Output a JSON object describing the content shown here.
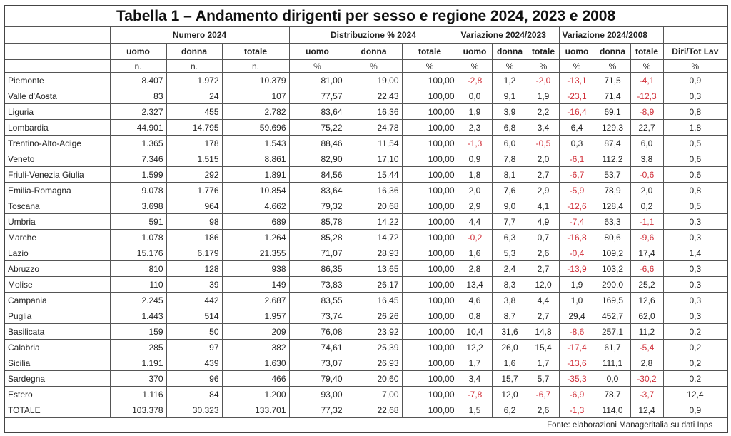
{
  "title": "Tabella 1 – Andamento dirigenti per sesso e regione 2024, 2023 e 2008",
  "groups": [
    "Numero 2024",
    "Distribuzione % 2024",
    "Variazione 2024/2023",
    "Variazione 2024/2008"
  ],
  "columns": [
    "uomo",
    "donna",
    "totale",
    "uomo",
    "donna",
    "totale",
    "uomo",
    "donna",
    "totale",
    "uomo",
    "donna",
    "totale",
    "Diri/Tot Lav"
  ],
  "units": [
    "n.",
    "n.",
    "n.",
    "%",
    "%",
    "%",
    "%",
    "%",
    "%",
    "%",
    "%",
    "%",
    "%"
  ],
  "negative_color": "#d0303a",
  "rows": [
    [
      "Piemonte",
      "8.407",
      "1.972",
      "10.379",
      "81,00",
      "19,00",
      "100,00",
      "-2,8",
      "1,2",
      "-2,0",
      "-13,1",
      "71,5",
      "-4,1",
      "0,9"
    ],
    [
      "Valle d'Aosta",
      "83",
      "24",
      "107",
      "77,57",
      "22,43",
      "100,00",
      "0,0",
      "9,1",
      "1,9",
      "-23,1",
      "71,4",
      "-12,3",
      "0,3"
    ],
    [
      "Liguria",
      "2.327",
      "455",
      "2.782",
      "83,64",
      "16,36",
      "100,00",
      "1,9",
      "3,9",
      "2,2",
      "-16,4",
      "69,1",
      "-8,9",
      "0,8"
    ],
    [
      "Lombardia",
      "44.901",
      "14.795",
      "59.696",
      "75,22",
      "24,78",
      "100,00",
      "2,3",
      "6,8",
      "3,4",
      "6,4",
      "129,3",
      "22,7",
      "1,8"
    ],
    [
      "Trentino-Alto-Adige",
      "1.365",
      "178",
      "1.543",
      "88,46",
      "11,54",
      "100,00",
      "-1,3",
      "6,0",
      "-0,5",
      "0,3",
      "87,4",
      "6,0",
      "0,5"
    ],
    [
      "Veneto",
      "7.346",
      "1.515",
      "8.861",
      "82,90",
      "17,10",
      "100,00",
      "0,9",
      "7,8",
      "2,0",
      "-6,1",
      "112,2",
      "3,8",
      "0,6"
    ],
    [
      "Friuli-Venezia Giulia",
      "1.599",
      "292",
      "1.891",
      "84,56",
      "15,44",
      "100,00",
      "1,8",
      "8,1",
      "2,7",
      "-6,7",
      "53,7",
      "-0,6",
      "0,6"
    ],
    [
      "Emilia-Romagna",
      "9.078",
      "1.776",
      "10.854",
      "83,64",
      "16,36",
      "100,00",
      "2,0",
      "7,6",
      "2,9",
      "-5,9",
      "78,9",
      "2,0",
      "0,8"
    ],
    [
      "Toscana",
      "3.698",
      "964",
      "4.662",
      "79,32",
      "20,68",
      "100,00",
      "2,9",
      "9,0",
      "4,1",
      "-12,6",
      "128,4",
      "0,2",
      "0,5"
    ],
    [
      "Umbria",
      "591",
      "98",
      "689",
      "85,78",
      "14,22",
      "100,00",
      "4,4",
      "7,7",
      "4,9",
      "-7,4",
      "63,3",
      "-1,1",
      "0,3"
    ],
    [
      "Marche",
      "1.078",
      "186",
      "1.264",
      "85,28",
      "14,72",
      "100,00",
      "-0,2",
      "6,3",
      "0,7",
      "-16,8",
      "80,6",
      "-9,6",
      "0,3"
    ],
    [
      "Lazio",
      "15.176",
      "6.179",
      "21.355",
      "71,07",
      "28,93",
      "100,00",
      "1,6",
      "5,3",
      "2,6",
      "-0,4",
      "109,2",
      "17,4",
      "1,4"
    ],
    [
      "Abruzzo",
      "810",
      "128",
      "938",
      "86,35",
      "13,65",
      "100,00",
      "2,8",
      "2,4",
      "2,7",
      "-13,9",
      "103,2",
      "-6,6",
      "0,3"
    ],
    [
      "Molise",
      "110",
      "39",
      "149",
      "73,83",
      "26,17",
      "100,00",
      "13,4",
      "8,3",
      "12,0",
      "1,9",
      "290,0",
      "25,2",
      "0,3"
    ],
    [
      "Campania",
      "2.245",
      "442",
      "2.687",
      "83,55",
      "16,45",
      "100,00",
      "4,6",
      "3,8",
      "4,4",
      "1,0",
      "169,5",
      "12,6",
      "0,3"
    ],
    [
      "Puglia",
      "1.443",
      "514",
      "1.957",
      "73,74",
      "26,26",
      "100,00",
      "0,8",
      "8,7",
      "2,7",
      "29,4",
      "452,7",
      "62,0",
      "0,3"
    ],
    [
      "Basilicata",
      "159",
      "50",
      "209",
      "76,08",
      "23,92",
      "100,00",
      "10,4",
      "31,6",
      "14,8",
      "-8,6",
      "257,1",
      "11,2",
      "0,2"
    ],
    [
      "Calabria",
      "285",
      "97",
      "382",
      "74,61",
      "25,39",
      "100,00",
      "12,2",
      "26,0",
      "15,4",
      "-17,4",
      "61,7",
      "-5,4",
      "0,2"
    ],
    [
      "Sicilia",
      "1.191",
      "439",
      "1.630",
      "73,07",
      "26,93",
      "100,00",
      "1,7",
      "1,6",
      "1,7",
      "-13,6",
      "111,1",
      "2,8",
      "0,2"
    ],
    [
      "Sardegna",
      "370",
      "96",
      "466",
      "79,40",
      "20,60",
      "100,00",
      "3,4",
      "15,7",
      "5,7",
      "-35,3",
      "0,0",
      "-30,2",
      "0,2"
    ],
    [
      "Estero",
      "1.116",
      "84",
      "1.200",
      "93,00",
      "7,00",
      "100,00",
      "-7,8",
      "12,0",
      "-6,7",
      "-6,9",
      "78,7",
      "-3,7",
      "12,4"
    ],
    [
      "TOTALE",
      "103.378",
      "30.323",
      "133.701",
      "77,32",
      "22,68",
      "100,00",
      "1,5",
      "6,2",
      "2,6",
      "-1,3",
      "114,0",
      "12,4",
      "0,9"
    ]
  ],
  "source": "Fonte: elaborazioni Manageritalia su dati Inps"
}
